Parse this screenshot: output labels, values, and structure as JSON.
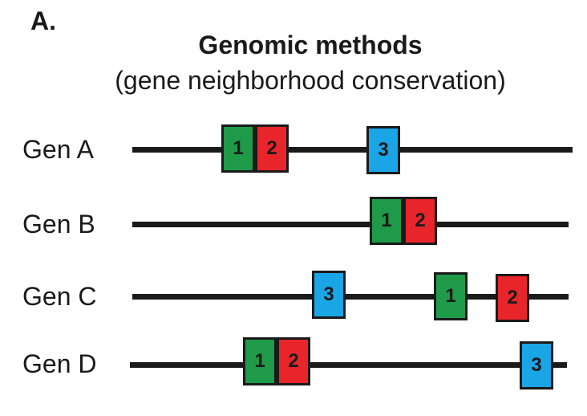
{
  "header": {
    "panel_letter": "A.",
    "title": "Genomic methods",
    "subtitle": "(gene neighborhood conservation)"
  },
  "colors": {
    "gene_1": "#1e9a48",
    "gene_2": "#e8252b",
    "gene_3": "#19a5e6",
    "line": "#1a1a1a"
  },
  "genomes": [
    {
      "label": "Gen A",
      "genes": [
        {
          "number": "1",
          "color_key": "gene_1"
        },
        {
          "number": "2",
          "color_key": "gene_2"
        },
        {
          "number": "3",
          "color_key": "gene_3"
        }
      ]
    },
    {
      "label": "Gen B",
      "genes": [
        {
          "number": "1",
          "color_key": "gene_1"
        },
        {
          "number": "2",
          "color_key": "gene_2"
        }
      ]
    },
    {
      "label": "Gen C",
      "genes": [
        {
          "number": "3",
          "color_key": "gene_3"
        },
        {
          "number": "1",
          "color_key": "gene_1"
        },
        {
          "number": "2",
          "color_key": "gene_2"
        }
      ]
    },
    {
      "label": "Gen D",
      "genes": [
        {
          "number": "1",
          "color_key": "gene_1"
        },
        {
          "number": "2",
          "color_key": "gene_2"
        },
        {
          "number": "3",
          "color_key": "gene_3"
        }
      ]
    }
  ]
}
